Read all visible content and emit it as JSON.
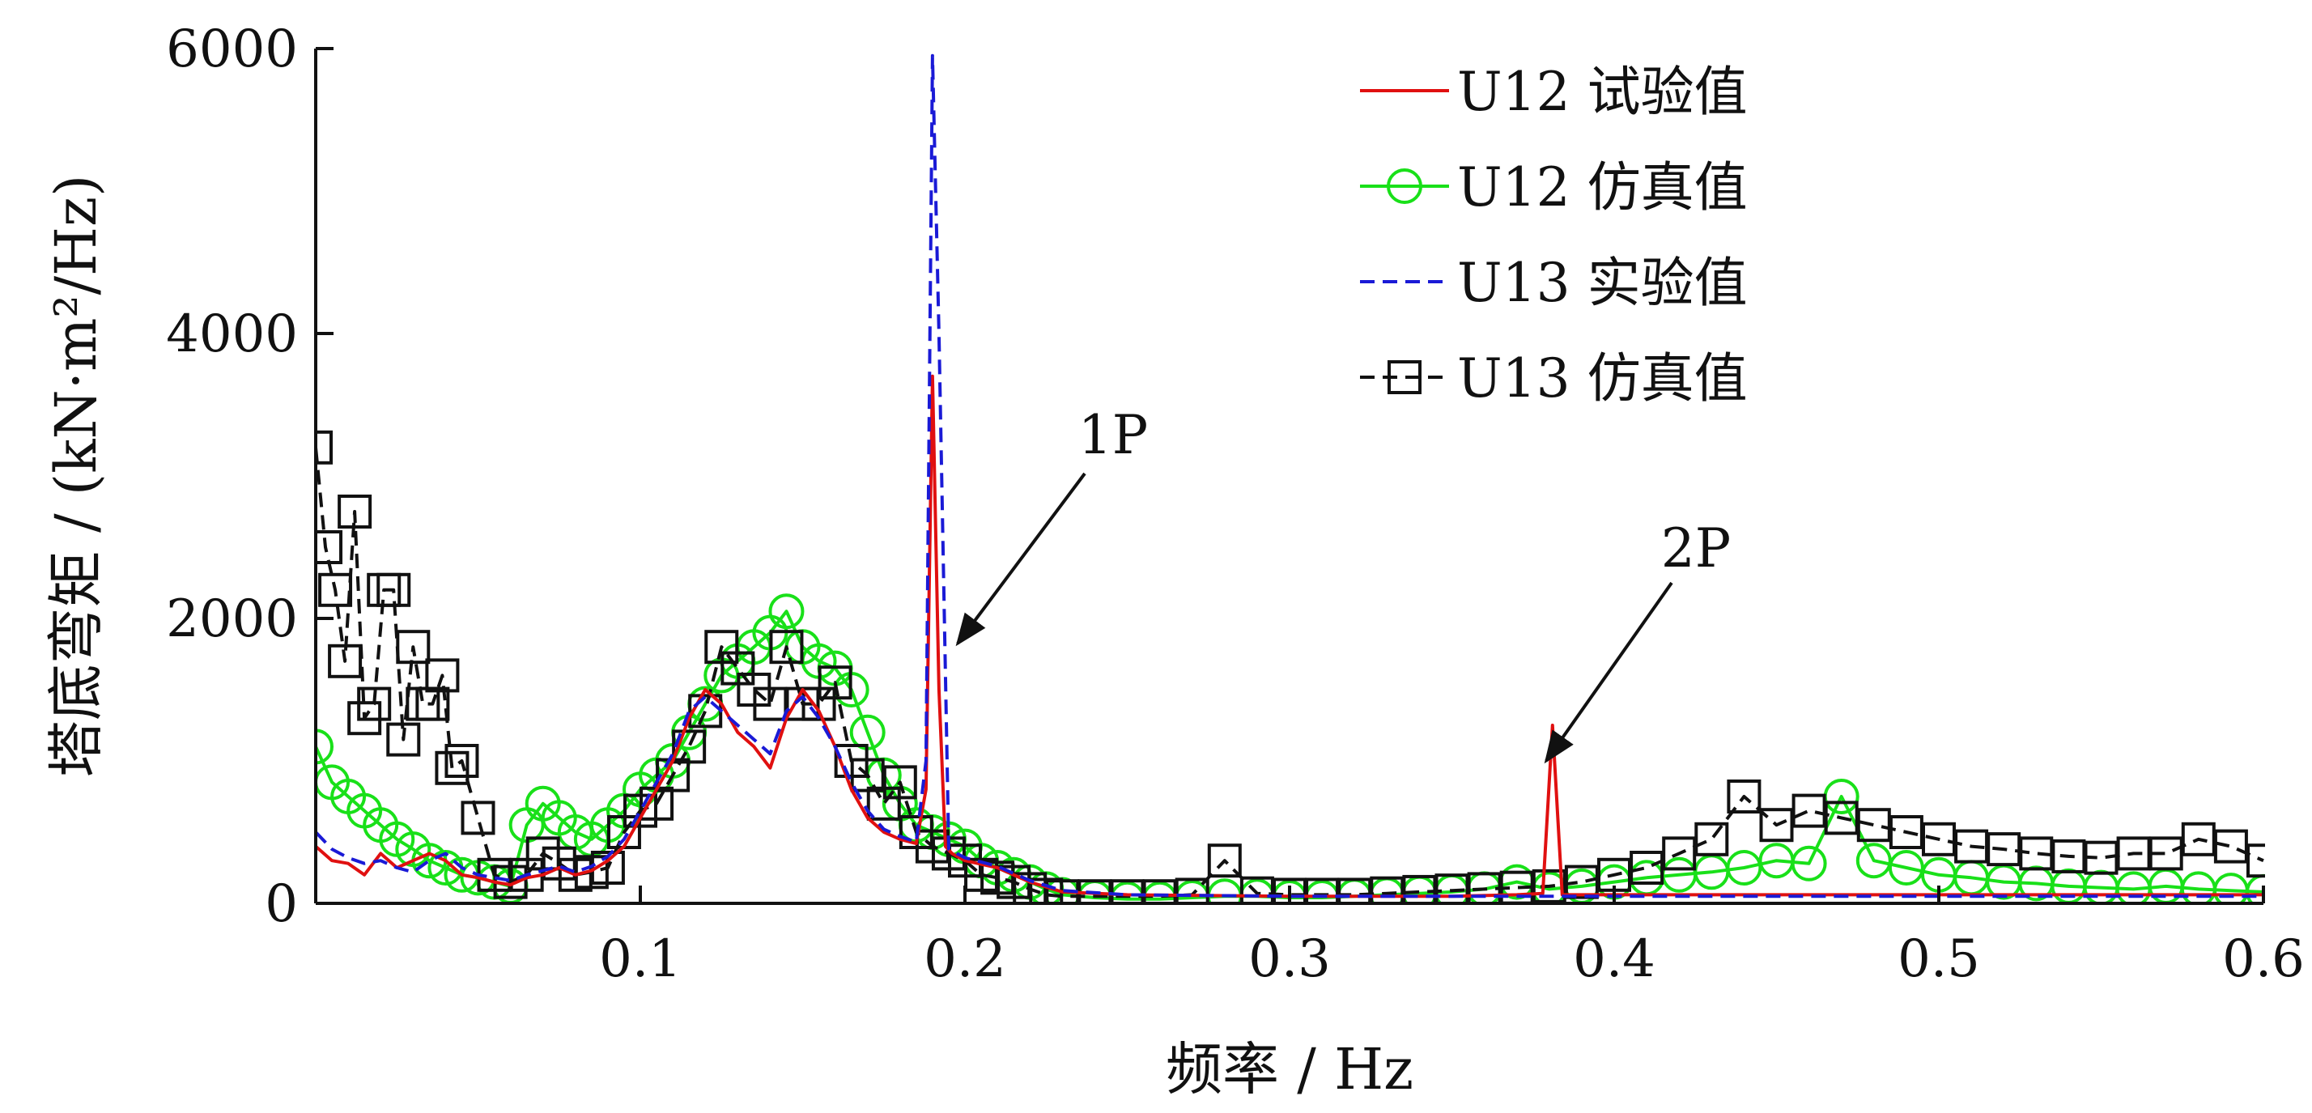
{
  "chart_data": {
    "type": "line",
    "xlabel": "频率 / Hz",
    "ylabel": "塔底弯矩 / (kN·m²/Hz)",
    "xlim": [
      0.0,
      0.6
    ],
    "ylim": [
      0,
      6000
    ],
    "x_ticks": [
      {
        "value": 0.1,
        "label": "0.1"
      },
      {
        "value": 0.2,
        "label": "0.2"
      },
      {
        "value": 0.3,
        "label": "0.3"
      },
      {
        "value": 0.4,
        "label": "0.4"
      },
      {
        "value": 0.5,
        "label": "0.5"
      },
      {
        "value": 0.6,
        "label": "0.6"
      }
    ],
    "y_ticks": [
      {
        "value": 0,
        "label": "0"
      },
      {
        "value": 2000,
        "label": "2000"
      },
      {
        "value": 4000,
        "label": "4000"
      },
      {
        "value": 6000,
        "label": "6000"
      }
    ],
    "grid": false,
    "legend_position": "top-right",
    "annotations": [
      {
        "label": "1P",
        "x": 0.192,
        "y": 1800
      },
      {
        "label": "2P",
        "x": 0.382,
        "y": 900
      }
    ],
    "series": [
      {
        "name": "U12 试验值",
        "color": "#e01010",
        "line_style": "solid",
        "marker": "none",
        "x": [
          0.0,
          0.005,
          0.01,
          0.015,
          0.02,
          0.025,
          0.03,
          0.035,
          0.04,
          0.045,
          0.05,
          0.055,
          0.06,
          0.065,
          0.07,
          0.075,
          0.08,
          0.085,
          0.09,
          0.095,
          0.1,
          0.105,
          0.11,
          0.115,
          0.12,
          0.125,
          0.13,
          0.135,
          0.14,
          0.145,
          0.15,
          0.155,
          0.16,
          0.165,
          0.17,
          0.175,
          0.18,
          0.185,
          0.188,
          0.19,
          0.192,
          0.194,
          0.196,
          0.2,
          0.21,
          0.22,
          0.23,
          0.25,
          0.3,
          0.35,
          0.37,
          0.378,
          0.381,
          0.384,
          0.39,
          0.4,
          0.45,
          0.5,
          0.55,
          0.6
        ],
        "y": [
          400,
          300,
          280,
          200,
          350,
          250,
          300,
          350,
          300,
          200,
          180,
          150,
          130,
          180,
          200,
          250,
          200,
          230,
          300,
          400,
          600,
          800,
          1000,
          1300,
          1500,
          1400,
          1200,
          1100,
          950,
          1300,
          1500,
          1350,
          1100,
          800,
          600,
          500,
          450,
          420,
          800,
          3700,
          1500,
          400,
          350,
          300,
          250,
          150,
          80,
          60,
          50,
          50,
          60,
          70,
          1250,
          60,
          60,
          60,
          60,
          60,
          60,
          60
        ]
      },
      {
        "name": "U12 仿真值",
        "color": "#19e019",
        "line_style": "solid",
        "marker": "circle",
        "x": [
          0.0,
          0.005,
          0.01,
          0.015,
          0.02,
          0.025,
          0.03,
          0.035,
          0.04,
          0.045,
          0.05,
          0.055,
          0.06,
          0.065,
          0.07,
          0.075,
          0.08,
          0.085,
          0.09,
          0.095,
          0.1,
          0.105,
          0.11,
          0.115,
          0.12,
          0.125,
          0.13,
          0.135,
          0.14,
          0.145,
          0.15,
          0.155,
          0.16,
          0.165,
          0.17,
          0.175,
          0.18,
          0.185,
          0.19,
          0.195,
          0.2,
          0.205,
          0.21,
          0.215,
          0.22,
          0.225,
          0.23,
          0.24,
          0.25,
          0.26,
          0.27,
          0.28,
          0.29,
          0.3,
          0.31,
          0.32,
          0.33,
          0.34,
          0.35,
          0.36,
          0.37,
          0.38,
          0.39,
          0.4,
          0.41,
          0.42,
          0.43,
          0.44,
          0.45,
          0.46,
          0.47,
          0.48,
          0.49,
          0.5,
          0.51,
          0.52,
          0.53,
          0.54,
          0.55,
          0.56,
          0.57,
          0.58,
          0.59,
          0.6
        ],
        "y": [
          1100,
          850,
          750,
          650,
          550,
          450,
          380,
          300,
          250,
          200,
          180,
          150,
          120,
          550,
          700,
          600,
          500,
          450,
          550,
          650,
          800,
          900,
          1000,
          1200,
          1400,
          1600,
          1700,
          1800,
          1900,
          2050,
          1800,
          1700,
          1650,
          1500,
          1200,
          900,
          700,
          550,
          500,
          450,
          400,
          300,
          250,
          200,
          150,
          100,
          60,
          40,
          30,
          30,
          40,
          50,
          50,
          40,
          40,
          50,
          60,
          70,
          80,
          100,
          150,
          100,
          120,
          150,
          180,
          200,
          220,
          250,
          300,
          280,
          750,
          300,
          250,
          200,
          180,
          150,
          140,
          120,
          110,
          100,
          120,
          100,
          90,
          80
        ]
      },
      {
        "name": "U13 实验值",
        "color": "#1a1ad6",
        "line_style": "dashed",
        "marker": "none",
        "x": [
          0.0,
          0.005,
          0.01,
          0.015,
          0.02,
          0.025,
          0.03,
          0.035,
          0.04,
          0.045,
          0.05,
          0.055,
          0.06,
          0.065,
          0.07,
          0.075,
          0.08,
          0.085,
          0.09,
          0.095,
          0.1,
          0.105,
          0.11,
          0.115,
          0.12,
          0.125,
          0.13,
          0.135,
          0.14,
          0.145,
          0.15,
          0.155,
          0.16,
          0.165,
          0.17,
          0.175,
          0.18,
          0.185,
          0.188,
          0.19,
          0.192,
          0.195,
          0.2,
          0.21,
          0.22,
          0.23,
          0.25,
          0.3,
          0.35,
          0.4,
          0.45,
          0.5,
          0.55,
          0.6
        ],
        "y": [
          500,
          380,
          320,
          280,
          300,
          250,
          220,
          300,
          350,
          250,
          200,
          180,
          160,
          200,
          230,
          260,
          220,
          260,
          330,
          450,
          650,
          850,
          1050,
          1350,
          1450,
          1350,
          1250,
          1150,
          1050,
          1350,
          1450,
          1300,
          1100,
          850,
          650,
          520,
          470,
          430,
          1000,
          5950,
          4000,
          380,
          320,
          260,
          160,
          90,
          60,
          50,
          50,
          50,
          50,
          50,
          50,
          50
        ]
      },
      {
        "name": "U13 仿真值",
        "color": "#111111",
        "line_style": "dashed",
        "marker": "square",
        "x": [
          0.0,
          0.003,
          0.006,
          0.009,
          0.012,
          0.015,
          0.018,
          0.021,
          0.024,
          0.027,
          0.03,
          0.033,
          0.036,
          0.039,
          0.042,
          0.045,
          0.05,
          0.055,
          0.06,
          0.065,
          0.07,
          0.075,
          0.08,
          0.085,
          0.09,
          0.095,
          0.1,
          0.105,
          0.11,
          0.115,
          0.12,
          0.125,
          0.13,
          0.135,
          0.14,
          0.145,
          0.15,
          0.155,
          0.16,
          0.165,
          0.17,
          0.175,
          0.18,
          0.185,
          0.19,
          0.195,
          0.2,
          0.205,
          0.21,
          0.215,
          0.22,
          0.225,
          0.23,
          0.24,
          0.25,
          0.26,
          0.27,
          0.28,
          0.29,
          0.3,
          0.31,
          0.32,
          0.33,
          0.34,
          0.35,
          0.36,
          0.37,
          0.38,
          0.39,
          0.4,
          0.41,
          0.42,
          0.43,
          0.44,
          0.45,
          0.46,
          0.47,
          0.48,
          0.49,
          0.5,
          0.51,
          0.52,
          0.53,
          0.54,
          0.55,
          0.56,
          0.57,
          0.58,
          0.59,
          0.6
        ],
        "y": [
          3200,
          2500,
          2200,
          1700,
          2750,
          1300,
          1400,
          2200,
          2200,
          1150,
          1800,
          1400,
          1400,
          1600,
          950,
          1000,
          600,
          200,
          150,
          200,
          350,
          280,
          200,
          220,
          250,
          500,
          650,
          700,
          900,
          1100,
          1350,
          1800,
          1650,
          1500,
          1400,
          1800,
          1400,
          1400,
          1550,
          1000,
          900,
          700,
          850,
          500,
          400,
          350,
          300,
          200,
          180,
          150,
          100,
          60,
          50,
          50,
          50,
          50,
          60,
          300,
          70,
          60,
          60,
          60,
          70,
          80,
          90,
          100,
          110,
          120,
          150,
          200,
          250,
          350,
          450,
          750,
          550,
          650,
          600,
          550,
          500,
          450,
          400,
          380,
          350,
          330,
          320,
          350,
          350,
          450,
          400,
          300
        ]
      }
    ]
  }
}
